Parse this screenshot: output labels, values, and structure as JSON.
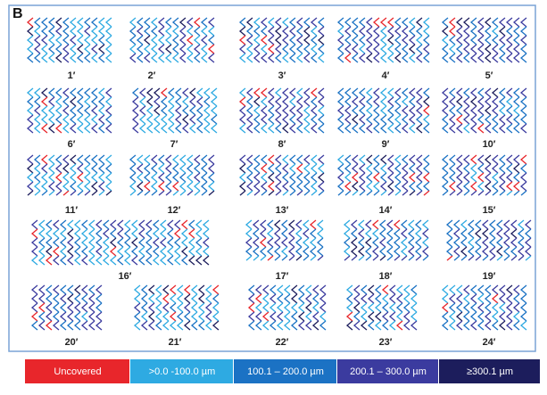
{
  "panel_label": "B",
  "panels": [
    {
      "label": "1′"
    },
    {
      "label": "2′"
    },
    {
      "label": "3′"
    },
    {
      "label": "4′"
    },
    {
      "label": "5′"
    },
    {
      "label": "6′"
    },
    {
      "label": "7′"
    },
    {
      "label": "8′"
    },
    {
      "label": "9′"
    },
    {
      "label": "10′"
    },
    {
      "label": "11′"
    },
    {
      "label": "12′"
    },
    {
      "label": "13′"
    },
    {
      "label": "14′"
    },
    {
      "label": "15′"
    },
    {
      "label": "16′"
    },
    {
      "label": "17′"
    },
    {
      "label": "18′"
    },
    {
      "label": "19′"
    },
    {
      "label": "20′"
    },
    {
      "label": "21′"
    },
    {
      "label": "22′"
    },
    {
      "label": "23′"
    },
    {
      "label": "24′"
    }
  ],
  "legend": [
    {
      "label": "Uncovered",
      "color": "#e8262b"
    },
    {
      "label": ">0.0 -100.0 µm",
      "color": "#2eaae2"
    },
    {
      "label": "100.1 – 200.0 µm",
      "color": "#1b72c4"
    },
    {
      "label": "200.1 – 300.0 µm",
      "color": "#3b3b9f"
    },
    {
      "label": "≥300.1 µm",
      "color": "#1c1d5c"
    }
  ]
}
